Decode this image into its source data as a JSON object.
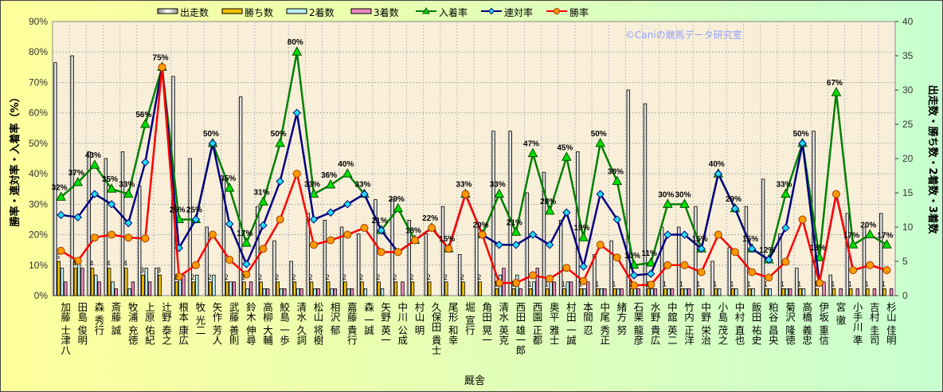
{
  "chart_data": {
    "type": "bar+line",
    "xlabel": "厩舎",
    "ylabel_left": "勝率・連対率・入着率（%）",
    "ylabel_right": "出走数・勝ち数・2着数・3着数",
    "ylim_left": [
      0,
      90
    ],
    "ylim_right": [
      0,
      40
    ],
    "yticks_left": [
      "0%",
      "10%",
      "20%",
      "30%",
      "40%",
      "50%",
      "60%",
      "70%",
      "80%",
      "90%"
    ],
    "yticks_right": [
      "0",
      "5",
      "10",
      "15",
      "20",
      "25",
      "30",
      "35",
      "40"
    ],
    "grid": true,
    "legend_position": "top",
    "watermark": "©Caniの競馬データ研究室",
    "categories": [
      "加藤 士津八",
      "田島 俊明",
      "森 秀行",
      "斎藤 誠",
      "牧浦 充徳",
      "上原 佑紀",
      "辻野 泰之",
      "根本 康広",
      "牧 光二",
      "矢作 芳人",
      "武藤 善則",
      "鈴木 伸尋",
      "高柳 大輔",
      "鮫島 一歩",
      "清水 久詞",
      "松山 将樹",
      "相沢 郁",
      "嘉藤 貴行",
      "森 一誠",
      "矢野 英一",
      "中川 公成",
      "村山 明",
      "久保田 貴士",
      "尾形 和幸",
      "堀 宣行",
      "角田 晃一",
      "清水 英克",
      "西田 雄一郎",
      "西園 正都",
      "奥平 雅士",
      "村田 一誠",
      "本間 忍",
      "中尾 秀正",
      "緒方 努",
      "石栗 龍彦",
      "水野 貴広",
      "中舘 英二",
      "竹内 正洋",
      "中野 栄治",
      "小島 茂之",
      "中村 直也",
      "飯田 祐史",
      "粕谷 昌央",
      "菊沢 隆徳",
      "高橋 義忠",
      "伊坂 重信",
      "宮 徹",
      "小手川 準",
      "吉村 圭司",
      "杉山 佳明"
    ],
    "bar_series": [
      {
        "name": "出走数",
        "axis": "right",
        "color": "#e8e8e8",
        "values": [
          34,
          35,
          21,
          20,
          21,
          16,
          4,
          32,
          20,
          10,
          17,
          29,
          13,
          8,
          5,
          12,
          11,
          10,
          9,
          14,
          14,
          11,
          9,
          13,
          6,
          10,
          24,
          24,
          15,
          18,
          11,
          21,
          6,
          8,
          30,
          28,
          10,
          10,
          13,
          5,
          7,
          13,
          17,
          9,
          4,
          24,
          3,
          12,
          10,
          12
        ]
      },
      {
        "name": "勝ち数",
        "axis": "right",
        "color": "#f0c000",
        "values": [
          5,
          4,
          4,
          4,
          4,
          3,
          3,
          2,
          2,
          2,
          2,
          2,
          2,
          2,
          2,
          2,
          2,
          2,
          2,
          2,
          2,
          2,
          2,
          2,
          2,
          2,
          1,
          1,
          1,
          1,
          1,
          1,
          1,
          1,
          1,
          1,
          1,
          1,
          1,
          1,
          1,
          1,
          1,
          1,
          1,
          1,
          1,
          1,
          1,
          1
        ]
      },
      {
        "name": "2着数",
        "axis": "right",
        "color": "#b8eef0",
        "values": [
          4,
          5,
          3,
          2,
          1,
          4,
          0,
          3,
          3,
          3,
          2,
          1,
          1,
          1,
          1,
          1,
          1,
          1,
          1,
          1,
          0,
          0,
          0,
          0,
          0,
          0,
          3,
          3,
          2,
          2,
          2,
          1,
          1,
          1,
          1,
          1,
          1,
          1,
          1,
          1,
          1,
          1,
          1,
          1,
          1,
          0,
          0,
          0,
          0,
          0
        ]
      },
      {
        "name": "3着数",
        "axis": "right",
        "color": "#ee88c0",
        "values": [
          2,
          4,
          2,
          1,
          2,
          2,
          0,
          3,
          0,
          0,
          2,
          2,
          1,
          1,
          1,
          1,
          1,
          1,
          0,
          0,
          2,
          0,
          0,
          0,
          0,
          0,
          4,
          1,
          4,
          2,
          2,
          2,
          1,
          1,
          1,
          1,
          1,
          1,
          0,
          0,
          0,
          0,
          0,
          1,
          0,
          2,
          1,
          1,
          1,
          1
        ]
      }
    ],
    "line_series": [
      {
        "name": "入着率",
        "axis": "left",
        "color": "#008000",
        "marker": "triangle",
        "marker_color": "#00dd00"
      },
      {
        "name": "連対率",
        "axis": "left",
        "color": "#000080",
        "marker": "diamond",
        "marker_color": "#22ddee"
      },
      {
        "name": "勝率",
        "axis": "left",
        "color": "#ff0000",
        "marker": "circle",
        "marker_color": "#ff9900"
      }
    ]
  }
}
